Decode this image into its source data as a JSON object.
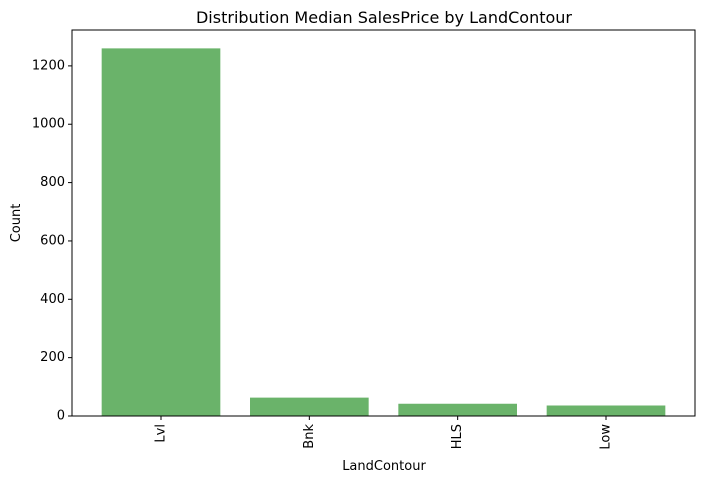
{
  "chart_data": {
    "type": "bar",
    "title": "Distribution Median SalesPrice by LandContour",
    "xlabel": "LandContour",
    "ylabel": "Count",
    "categories": [
      "Lvl",
      "Bnk",
      "HLS",
      "Low"
    ],
    "values": [
      1260,
      63,
      42,
      36
    ],
    "ylim": [
      0,
      1323
    ],
    "yticks": [
      0,
      200,
      400,
      600,
      800,
      1000,
      1200
    ],
    "bar_color": "#6ab36a",
    "grid": false,
    "legend": "none",
    "x_tick_rotation": "vertical"
  }
}
